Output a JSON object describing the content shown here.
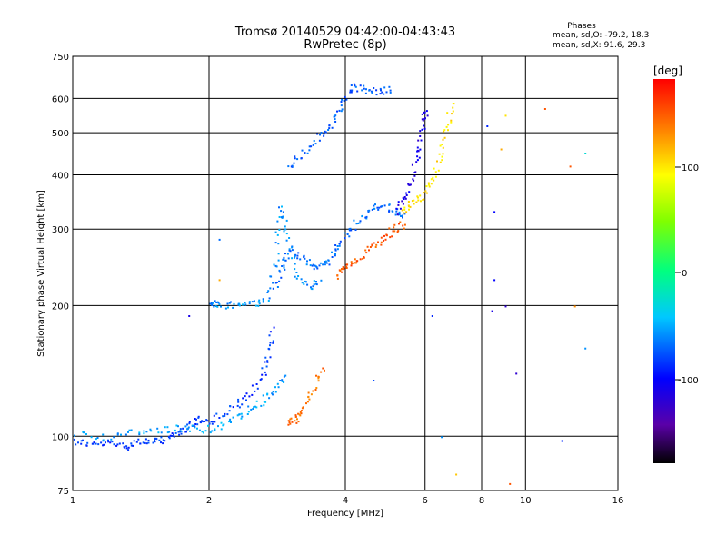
{
  "header": {
    "title": "Tromsø 20140529 04:42:00-04:43:43",
    "subtitle": "RwPretec (8p)",
    "stats_title": "Phases",
    "stats_o": "mean, sd,O: -79.2, 18.3",
    "stats_x": "mean, sd,X:  91.6, 29.3"
  },
  "axes": {
    "xlabel": "Frequency [MHz]",
    "ylabel": "Stationary phase Virtual Height [km]"
  },
  "colorbar": {
    "label": "[deg]",
    "ticks": [
      "100",
      "0",
      "-100"
    ]
  },
  "chart_data": {
    "type": "scatter",
    "x_scale": "log",
    "y_scale": "log",
    "xlim": [
      1,
      16
    ],
    "ylim": [
      75,
      750
    ],
    "x_ticks": [
      {
        "v": 1,
        "label": "1"
      },
      {
        "v": 2,
        "label": "2"
      },
      {
        "v": 4,
        "label": "4"
      },
      {
        "v": 6,
        "label": "6"
      },
      {
        "v": 8,
        "label": "8"
      },
      {
        "v": 10,
        "label": "10"
      },
      {
        "v": 16,
        "label": "16"
      }
    ],
    "y_ticks": [
      {
        "v": 75,
        "label": "75"
      },
      {
        "v": 100,
        "label": "100"
      },
      {
        "v": 200,
        "label": "200"
      },
      {
        "v": 300,
        "label": "300"
      },
      {
        "v": 400,
        "label": "400"
      },
      {
        "v": 500,
        "label": "500"
      },
      {
        "v": 600,
        "label": "600"
      },
      {
        "v": 750,
        "label": "750"
      }
    ],
    "grid": true,
    "colorbar_range_deg": [
      -180,
      180
    ],
    "traces": [
      {
        "phase": -85,
        "points": [
          [
            1.0,
            98
          ],
          [
            1.1,
            96
          ],
          [
            1.2,
            97
          ],
          [
            1.3,
            95
          ],
          [
            1.4,
            98
          ],
          [
            1.5,
            97
          ],
          [
            1.6,
            99
          ],
          [
            1.7,
            102
          ],
          [
            1.8,
            106
          ],
          [
            1.9,
            110
          ],
          [
            2.0,
            108
          ],
          [
            2.2,
            115
          ],
          [
            2.4,
            122
          ],
          [
            2.6,
            135
          ],
          [
            2.7,
            155
          ],
          [
            2.75,
            180
          ]
        ]
      },
      {
        "phase": -55,
        "points": [
          [
            1.0,
            102
          ],
          [
            1.2,
            100
          ],
          [
            1.4,
            103
          ],
          [
            1.6,
            104
          ],
          [
            1.8,
            105
          ],
          [
            2.0,
            104
          ],
          [
            2.2,
            108
          ],
          [
            2.4,
            114
          ],
          [
            2.6,
            120
          ],
          [
            2.8,
            128
          ],
          [
            2.95,
            140
          ]
        ]
      },
      {
        "phase": -60,
        "points": [
          [
            2.0,
            205
          ],
          [
            2.1,
            200
          ],
          [
            2.3,
            202
          ],
          [
            2.5,
            203
          ],
          [
            2.7,
            208
          ],
          [
            2.8,
            260
          ],
          [
            2.85,
            340
          ],
          [
            2.95,
            300
          ],
          [
            3.1,
            240
          ],
          [
            3.3,
            220
          ],
          [
            3.5,
            230
          ]
        ]
      },
      {
        "phase": -70,
        "points": [
          [
            2.8,
            220
          ],
          [
            2.9,
            250
          ],
          [
            3.0,
            270
          ],
          [
            3.2,
            260
          ],
          [
            3.4,
            245
          ],
          [
            3.6,
            250
          ],
          [
            3.8,
            270
          ],
          [
            4.0,
            290
          ],
          [
            4.2,
            310
          ],
          [
            4.5,
            330
          ],
          [
            4.8,
            345
          ],
          [
            5.1,
            330
          ],
          [
            5.4,
            325
          ]
        ]
      },
      {
        "phase": -75,
        "points": [
          [
            3.0,
            420
          ],
          [
            3.2,
            450
          ],
          [
            3.5,
            490
          ],
          [
            3.7,
            520
          ],
          [
            3.9,
            570
          ],
          [
            4.1,
            640
          ],
          [
            4.4,
            630
          ],
          [
            4.7,
            625
          ],
          [
            5.1,
            635
          ]
        ]
      },
      {
        "phase": -110,
        "points": [
          [
            5.2,
            330
          ],
          [
            5.4,
            360
          ],
          [
            5.6,
            400
          ],
          [
            5.8,
            460
          ],
          [
            5.95,
            530
          ],
          [
            6.0,
            580
          ]
        ]
      },
      {
        "phase": 100,
        "points": [
          [
            5.3,
            330
          ],
          [
            5.6,
            345
          ],
          [
            5.9,
            360
          ],
          [
            6.2,
            390
          ],
          [
            6.5,
            450
          ],
          [
            6.7,
            520
          ],
          [
            6.9,
            600
          ]
        ]
      },
      {
        "phase": 150,
        "points": [
          [
            3.8,
            235
          ],
          [
            4.0,
            245
          ],
          [
            4.2,
            255
          ],
          [
            4.5,
            270
          ],
          [
            4.8,
            285
          ],
          [
            5.1,
            300
          ],
          [
            5.4,
            310
          ]
        ]
      },
      {
        "phase": 140,
        "points": [
          [
            3.0,
            108
          ],
          [
            3.1,
            110
          ],
          [
            3.2,
            116
          ],
          [
            3.4,
            130
          ],
          [
            3.55,
            145
          ]
        ]
      }
    ],
    "scattered_points": [
      {
        "f": 8.2,
        "h": 520,
        "phase": -90
      },
      {
        "f": 8.5,
        "h": 330,
        "phase": -100
      },
      {
        "f": 8.5,
        "h": 230,
        "phase": -100
      },
      {
        "f": 8.4,
        "h": 195,
        "phase": -110
      },
      {
        "f": 9.0,
        "h": 200,
        "phase": -120
      },
      {
        "f": 9.5,
        "h": 140,
        "phase": -120
      },
      {
        "f": 8.8,
        "h": 460,
        "phase": 120
      },
      {
        "f": 9.0,
        "h": 550,
        "phase": 100
      },
      {
        "f": 11.0,
        "h": 570,
        "phase": 150
      },
      {
        "f": 12.5,
        "h": 420,
        "phase": 150
      },
      {
        "f": 13.5,
        "h": 450,
        "phase": -30
      },
      {
        "f": 6.5,
        "h": 100,
        "phase": -60
      },
      {
        "f": 6.2,
        "h": 190,
        "phase": -90
      },
      {
        "f": 4.6,
        "h": 135,
        "phase": -80
      },
      {
        "f": 1.8,
        "h": 190,
        "phase": -110
      },
      {
        "f": 2.1,
        "h": 285,
        "phase": -70
      },
      {
        "f": 2.1,
        "h": 230,
        "phase": 120
      },
      {
        "f": 9.2,
        "h": 78,
        "phase": 150
      },
      {
        "f": 12.8,
        "h": 200,
        "phase": 130
      },
      {
        "f": 13.5,
        "h": 160,
        "phase": -60
      },
      {
        "f": 7.0,
        "h": 82,
        "phase": 110
      },
      {
        "f": 12.0,
        "h": 98,
        "phase": -90
      }
    ]
  },
  "colors": {
    "grid": "#000000",
    "background": "#ffffff"
  }
}
